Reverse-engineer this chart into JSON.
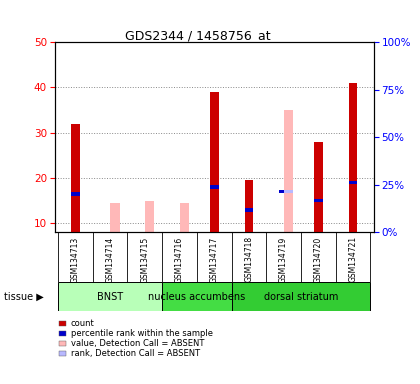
{
  "title": "GDS2344 / 1458756_at",
  "samples": [
    "GSM134713",
    "GSM134714",
    "GSM134715",
    "GSM134716",
    "GSM134717",
    "GSM134718",
    "GSM134719",
    "GSM134720",
    "GSM134721"
  ],
  "red_bars": [
    32,
    0,
    0,
    0,
    39,
    19.5,
    0,
    28,
    41
  ],
  "blue_bars": [
    16.5,
    0,
    0,
    0,
    18,
    13,
    17,
    15,
    19
  ],
  "pink_bars": [
    0,
    14.5,
    15,
    14.5,
    0,
    0,
    35,
    0,
    0
  ],
  "lightblue_bars": [
    0,
    0,
    0,
    0,
    0,
    0,
    17,
    0,
    0
  ],
  "ylim_left": [
    8,
    50
  ],
  "ylim_right": [
    0,
    100
  ],
  "yticks_left": [
    10,
    20,
    30,
    40,
    50
  ],
  "yticks_right": [
    0,
    25,
    50,
    75,
    100
  ],
  "ytick_labels_right": [
    "0%",
    "25%",
    "50%",
    "75%",
    "100%"
  ],
  "tissue_ranges": [
    {
      "label": "BNST",
      "start": 0,
      "end": 3,
      "color": "#b8ffb8"
    },
    {
      "label": "nucleus accumbens",
      "start": 3,
      "end": 5,
      "color": "#44dd44"
    },
    {
      "label": "dorsal striatum",
      "start": 5,
      "end": 9,
      "color": "#33cc33"
    }
  ],
  "bar_width": 0.25,
  "red_color": "#cc0000",
  "blue_color": "#0000cc",
  "pink_color": "#ffb8b8",
  "lightblue_color": "#b8b8ff",
  "grid_color": "#888888",
  "sample_bg": "#cccccc",
  "plot_bg": "#ffffff",
  "legend_items": [
    {
      "color": "#cc0000",
      "label": "count"
    },
    {
      "color": "#0000cc",
      "label": "percentile rank within the sample"
    },
    {
      "color": "#ffb8b8",
      "label": "value, Detection Call = ABSENT"
    },
    {
      "color": "#b8b8ff",
      "label": "rank, Detection Call = ABSENT"
    }
  ]
}
